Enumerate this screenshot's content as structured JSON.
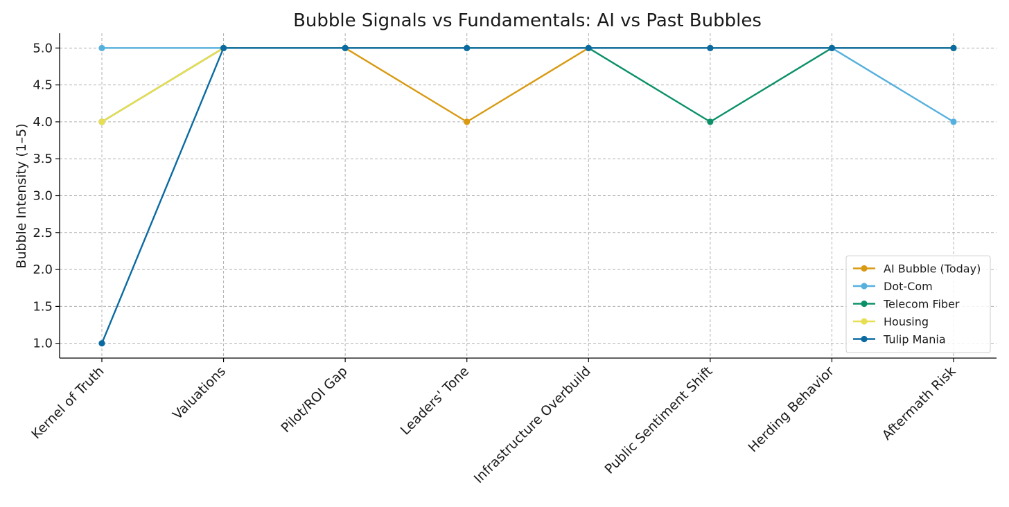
{
  "chart_data": {
    "type": "line",
    "title": "Bubble Signals vs Fundamentals: AI vs Past Bubbles",
    "xlabel": "",
    "ylabel": "Bubble Intensity (1–5)",
    "categories": [
      "Kernel of Truth",
      "Valuations",
      "Pilot/ROI Gap",
      "Leaders' Tone",
      "Infrastructure Overbuild",
      "Public Sentiment Shift",
      "Herding Behavior",
      "Aftermath Risk"
    ],
    "ylim": [
      0.8,
      5.2
    ],
    "yticks": [
      "1.0",
      "1.5",
      "2.0",
      "2.5",
      "3.0",
      "3.5",
      "4.0",
      "4.5",
      "5.0"
    ],
    "grid": true,
    "legend_position": "bottom-right",
    "series": [
      {
        "name": "AI Bubble (Today)",
        "color": "#d99a12",
        "values": [
          4,
          5,
          5,
          4,
          5,
          5,
          5,
          5
        ]
      },
      {
        "name": "Dot-Com",
        "color": "#56b0dd",
        "values": [
          5,
          5,
          5,
          5,
          5,
          5,
          5,
          4
        ]
      },
      {
        "name": "Telecom Fiber",
        "color": "#0b9068",
        "values": [
          4,
          5,
          5,
          5,
          5,
          4,
          5,
          5
        ]
      },
      {
        "name": "Housing",
        "color": "#e8de52",
        "values": [
          4,
          5,
          5,
          5,
          5,
          5,
          5,
          5
        ]
      },
      {
        "name": "Tulip Mania",
        "color": "#0a6aa1",
        "values": [
          1,
          5,
          5,
          5,
          5,
          5,
          5,
          5
        ]
      }
    ]
  }
}
